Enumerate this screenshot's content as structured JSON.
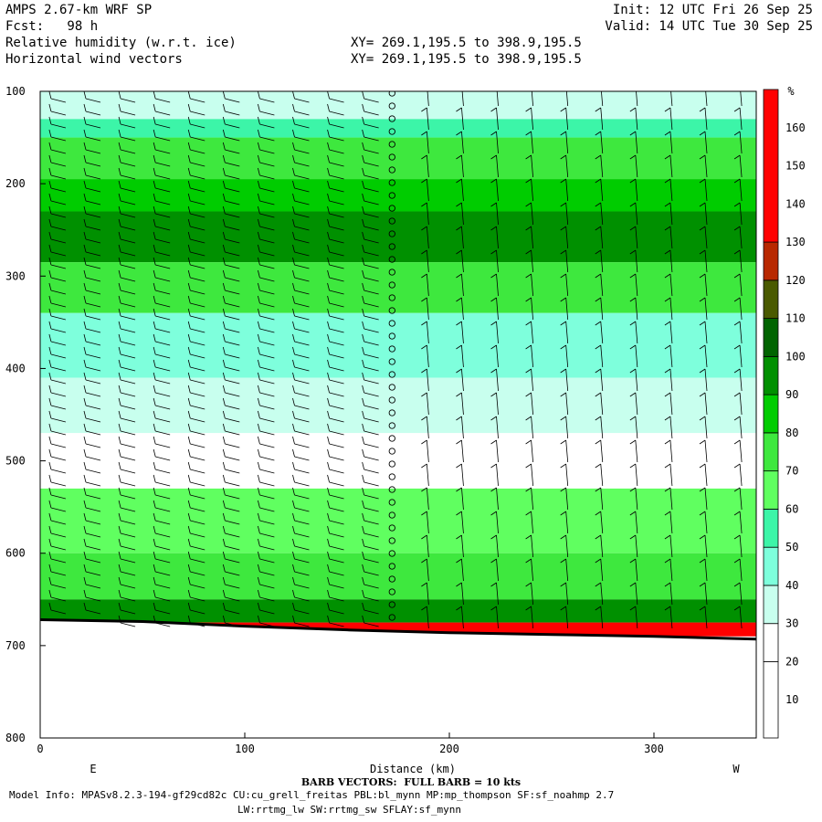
{
  "header": {
    "title": "AMPS 2.67-km WRF SP",
    "fcst": "Fcst:   98 h",
    "field1": "Relative humidity (w.r.t. ice)",
    "field2": "Horizontal wind vectors",
    "xy1": "XY= 269.1,195.5 to 398.9,195.5",
    "xy2": "XY= 269.1,195.5 to 398.9,195.5",
    "init": "Init: 12 UTC Fri 26 Sep 25",
    "valid": "Valid: 14 UTC Tue 30 Sep 25"
  },
  "footer": {
    "barb_note": "BARB VECTORS:  FULL BARB = 10 kts",
    "model_info": "Model Info: MPASv8.2.3-194-gf29cd82c CU:cu_grell_freitas PBL:bl_mynn MP:mp_thompson SF:sf_noahmp 2.7",
    "model_info2": "LW:rrtmg_lw SW:rrtmg_sw SFLAY:sf_mynn"
  },
  "chart_data": {
    "type": "heatmap",
    "xlabel": "Distance (km)",
    "ylabel": "",
    "xlim": [
      0,
      350
    ],
    "ylim": [
      800,
      100
    ],
    "x_ticks": [
      0,
      100,
      200,
      300
    ],
    "y_ticks": [
      100,
      200,
      300,
      400,
      500,
      600,
      700,
      800
    ],
    "left_endpoint_label": "E",
    "right_endpoint_label": "W",
    "colorbar": {
      "unit": "%",
      "tick_labels": [
        10,
        20,
        30,
        40,
        50,
        60,
        70,
        80,
        90,
        100,
        110,
        120,
        130,
        140,
        150,
        160
      ],
      "levels": [
        {
          "min": 0,
          "max": 20,
          "color": "#ffffff"
        },
        {
          "min": 20,
          "max": 30,
          "color": "#ffffff"
        },
        {
          "min": 30,
          "max": 40,
          "color": "#c8ffee"
        },
        {
          "min": 40,
          "max": 50,
          "color": "#7effdc"
        },
        {
          "min": 50,
          "max": 60,
          "color": "#3cf5a8"
        },
        {
          "min": 60,
          "max": 70,
          "color": "#60ff60"
        },
        {
          "min": 70,
          "max": 80,
          "color": "#3ee83e"
        },
        {
          "min": 80,
          "max": 90,
          "color": "#00cc00"
        },
        {
          "min": 90,
          "max": 100,
          "color": "#009000"
        },
        {
          "min": 100,
          "max": 110,
          "color": "#006400"
        },
        {
          "min": 110,
          "max": 120,
          "color": "#4a5a00"
        },
        {
          "min": 120,
          "max": 130,
          "color": "#b82800"
        },
        {
          "min": 130,
          "max": 170,
          "color": "#ff0000"
        }
      ]
    },
    "rh_layers": [
      {
        "top_hpa": 100,
        "bottom_hpa": 130,
        "rh": 35
      },
      {
        "top_hpa": 130,
        "bottom_hpa": 150,
        "rh": 55
      },
      {
        "top_hpa": 150,
        "bottom_hpa": 195,
        "rh": 75
      },
      {
        "top_hpa": 195,
        "bottom_hpa": 230,
        "rh": 85
      },
      {
        "top_hpa": 230,
        "bottom_hpa": 285,
        "rh": 95
      },
      {
        "top_hpa": 285,
        "bottom_hpa": 340,
        "rh": 70
      },
      {
        "top_hpa": 340,
        "bottom_hpa": 410,
        "rh": 45
      },
      {
        "top_hpa": 410,
        "bottom_hpa": 470,
        "rh": 30
      },
      {
        "top_hpa": 470,
        "bottom_hpa": 530,
        "rh": 20
      },
      {
        "top_hpa": 530,
        "bottom_hpa": 600,
        "rh": 65
      },
      {
        "top_hpa": 600,
        "bottom_hpa": 650,
        "rh": 75
      },
      {
        "top_hpa": 650,
        "bottom_hpa": 675,
        "rh": 90
      },
      {
        "top_hpa": 675,
        "bottom_hpa": 690,
        "rh": 150
      }
    ],
    "terrain_hpa": [
      [
        0,
        672
      ],
      [
        50,
        674
      ],
      [
        100,
        679
      ],
      [
        150,
        683
      ],
      [
        200,
        686
      ],
      [
        250,
        688
      ],
      [
        300,
        690
      ],
      [
        350,
        693
      ]
    ],
    "barb_columns_km": [
      8,
      25,
      42,
      59,
      76,
      93,
      110,
      127,
      144,
      161,
      172,
      189,
      206,
      223,
      240,
      257,
      274,
      291,
      308,
      325,
      342
    ]
  }
}
